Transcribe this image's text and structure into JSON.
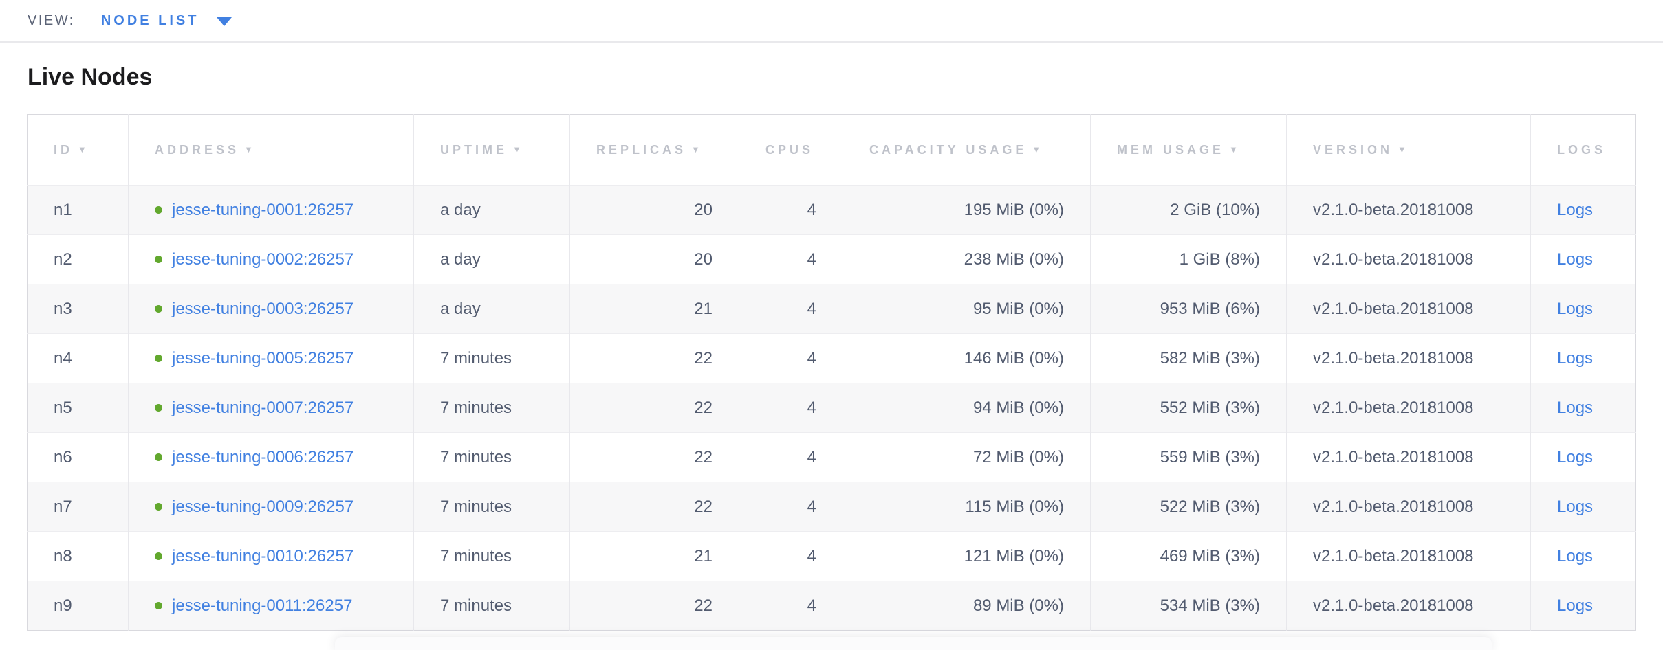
{
  "view_bar": {
    "label": "VIEW:",
    "selected": "NODE LIST"
  },
  "page": {
    "title": "Live Nodes"
  },
  "icons": {
    "sort_arrow": "▼",
    "dropdown_caret": "▼",
    "live_dot": "●"
  },
  "colors": {
    "accent_blue": "#4180e1",
    "live_green": "#62a82e",
    "header_gray": "#bfc2ca",
    "body_slate": "#525b6f"
  },
  "table": {
    "columns": [
      {
        "key": "id",
        "label": "ID",
        "sortable": true,
        "align": "left"
      },
      {
        "key": "address",
        "label": "ADDRESS",
        "sortable": true,
        "align": "left"
      },
      {
        "key": "uptime",
        "label": "UPTIME",
        "sortable": true,
        "align": "left"
      },
      {
        "key": "replicas",
        "label": "REPLICAS",
        "sortable": true,
        "align": "right"
      },
      {
        "key": "cpus",
        "label": "CPUS",
        "sortable": false,
        "align": "right"
      },
      {
        "key": "capacity",
        "label": "CAPACITY USAGE",
        "sortable": true,
        "align": "right"
      },
      {
        "key": "mem",
        "label": "MEM USAGE",
        "sortable": true,
        "align": "right"
      },
      {
        "key": "version",
        "label": "VERSION",
        "sortable": true,
        "align": "left"
      },
      {
        "key": "logs",
        "label": "LOGS",
        "sortable": false,
        "align": "left"
      }
    ],
    "rows": [
      {
        "id": "n1",
        "status": "live",
        "address": "jesse-tuning-0001:26257",
        "uptime": "a day",
        "replicas": "20",
        "cpus": "4",
        "capacity": "195 MiB (0%)",
        "mem": "2 GiB (10%)",
        "version": "v2.1.0-beta.20181008",
        "logs": "Logs"
      },
      {
        "id": "n2",
        "status": "live",
        "address": "jesse-tuning-0002:26257",
        "uptime": "a day",
        "replicas": "20",
        "cpus": "4",
        "capacity": "238 MiB (0%)",
        "mem": "1 GiB (8%)",
        "version": "v2.1.0-beta.20181008",
        "logs": "Logs"
      },
      {
        "id": "n3",
        "status": "live",
        "address": "jesse-tuning-0003:26257",
        "uptime": "a day",
        "replicas": "21",
        "cpus": "4",
        "capacity": "95 MiB (0%)",
        "mem": "953 MiB (6%)",
        "version": "v2.1.0-beta.20181008",
        "logs": "Logs"
      },
      {
        "id": "n4",
        "status": "live",
        "address": "jesse-tuning-0005:26257",
        "uptime": "7 minutes",
        "replicas": "22",
        "cpus": "4",
        "capacity": "146 MiB (0%)",
        "mem": "582 MiB (3%)",
        "version": "v2.1.0-beta.20181008",
        "logs": "Logs"
      },
      {
        "id": "n5",
        "status": "live",
        "address": "jesse-tuning-0007:26257",
        "uptime": "7 minutes",
        "replicas": "22",
        "cpus": "4",
        "capacity": "94 MiB (0%)",
        "mem": "552 MiB (3%)",
        "version": "v2.1.0-beta.20181008",
        "logs": "Logs"
      },
      {
        "id": "n6",
        "status": "live",
        "address": "jesse-tuning-0006:26257",
        "uptime": "7 minutes",
        "replicas": "22",
        "cpus": "4",
        "capacity": "72 MiB (0%)",
        "mem": "559 MiB (3%)",
        "version": "v2.1.0-beta.20181008",
        "logs": "Logs"
      },
      {
        "id": "n7",
        "status": "live",
        "address": "jesse-tuning-0009:26257",
        "uptime": "7 minutes",
        "replicas": "22",
        "cpus": "4",
        "capacity": "115 MiB (0%)",
        "mem": "522 MiB (3%)",
        "version": "v2.1.0-beta.20181008",
        "logs": "Logs"
      },
      {
        "id": "n8",
        "status": "live",
        "address": "jesse-tuning-0010:26257",
        "uptime": "7 minutes",
        "replicas": "21",
        "cpus": "4",
        "capacity": "121 MiB (0%)",
        "mem": "469 MiB (3%)",
        "version": "v2.1.0-beta.20181008",
        "logs": "Logs"
      },
      {
        "id": "n9",
        "status": "live",
        "address": "jesse-tuning-0011:26257",
        "uptime": "7 minutes",
        "replicas": "22",
        "cpus": "4",
        "capacity": "89 MiB (0%)",
        "mem": "534 MiB (3%)",
        "version": "v2.1.0-beta.20181008",
        "logs": "Logs"
      }
    ]
  }
}
